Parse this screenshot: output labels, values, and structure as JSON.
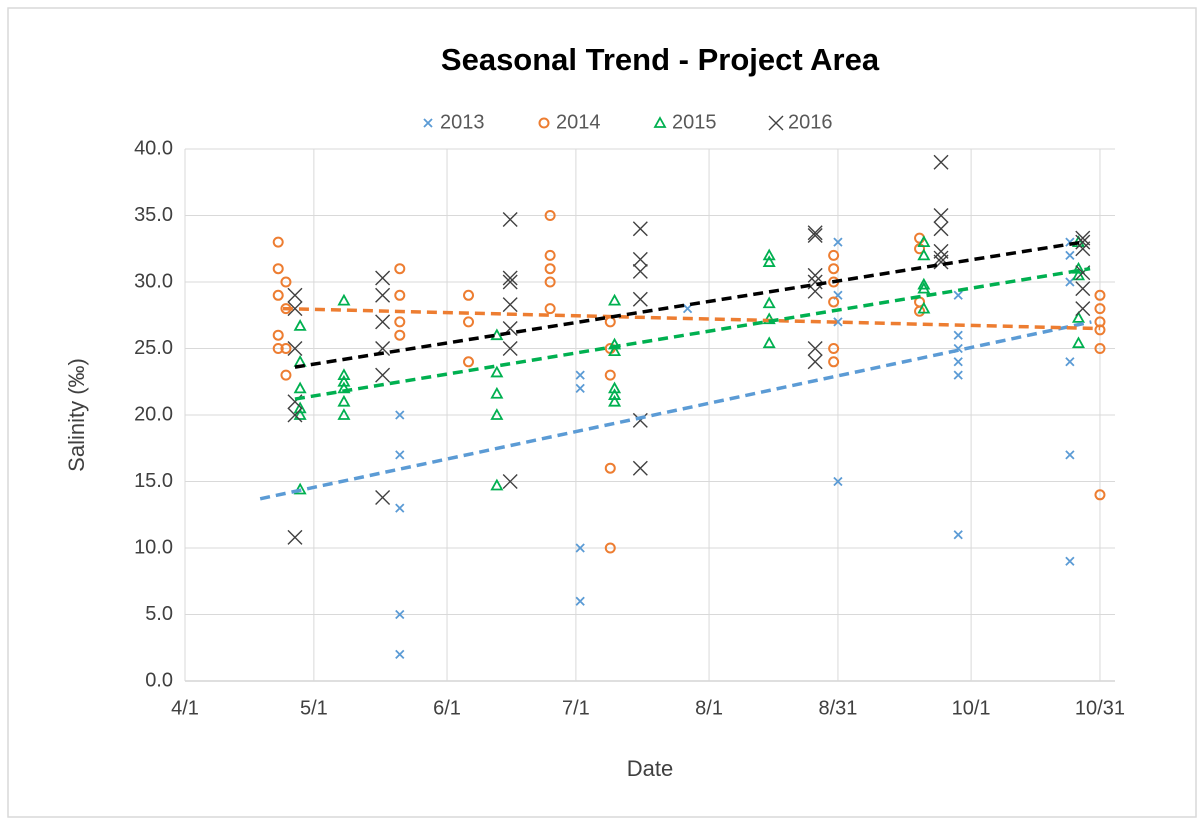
{
  "chart_data": {
    "type": "scatter",
    "title": "Seasonal Trend - Project Area",
    "x_label": "Date",
    "y_label": "Salinity (‰)",
    "xlim": [
      0,
      216.5
    ],
    "xticks": [
      {
        "value": 0,
        "label": "4/1"
      },
      {
        "value": 30,
        "label": "5/1"
      },
      {
        "value": 61,
        "label": "6/1"
      },
      {
        "value": 91,
        "label": "7/1"
      },
      {
        "value": 122,
        "label": "8/1"
      },
      {
        "value": 152,
        "label": "8/31"
      },
      {
        "value": 183,
        "label": "10/1"
      },
      {
        "value": 213,
        "label": "10/31"
      }
    ],
    "ylim": [
      0,
      40
    ],
    "yticks": [
      {
        "value": 0,
        "label": "0.0"
      },
      {
        "value": 5,
        "label": "5.0"
      },
      {
        "value": 10,
        "label": "10.0"
      },
      {
        "value": 15,
        "label": "15.0"
      },
      {
        "value": 20,
        "label": "20.0"
      },
      {
        "value": 25,
        "label": "25.0"
      },
      {
        "value": 30,
        "label": "30.0"
      },
      {
        "value": 35,
        "label": "35.0"
      },
      {
        "value": 40,
        "label": "40.0"
      }
    ],
    "grid": true,
    "legend": "top",
    "series": [
      {
        "name": "2013",
        "color": "#5b9bd5",
        "marker": "x",
        "x": [
          50,
          50,
          50,
          50,
          50,
          92,
          92,
          92,
          92,
          117,
          152,
          152,
          152,
          152,
          180,
          180,
          180,
          180,
          180,
          180,
          206,
          206,
          206,
          206,
          206,
          206
        ],
        "values": [
          20,
          17,
          13,
          5,
          2,
          23,
          22,
          10,
          6,
          28,
          33,
          29,
          27,
          15,
          29,
          26,
          25,
          24,
          23,
          11,
          33,
          32,
          30,
          24,
          17,
          9
        ],
        "trendline": {
          "x": [
            17.5,
            211
          ],
          "values": [
            13.7,
            27
          ]
        }
      },
      {
        "name": "2014",
        "color": "#ed7d31",
        "marker": "circle",
        "x": [
          21.7,
          21.7,
          21.7,
          21.7,
          21.7,
          23.5,
          23.5,
          23.5,
          23.5,
          50,
          50,
          50,
          50,
          66,
          66,
          66,
          85,
          85,
          85,
          85,
          85,
          99,
          99,
          99,
          99,
          99,
          151,
          151,
          151,
          151,
          151,
          151,
          171,
          171,
          171,
          171,
          213,
          213,
          213,
          213,
          213,
          213
        ],
        "values": [
          33,
          31,
          29,
          26,
          25,
          30,
          28,
          25,
          23,
          31,
          29,
          27,
          26,
          29,
          27,
          24,
          35,
          32,
          31,
          30,
          28,
          27,
          25,
          23,
          16,
          10,
          32,
          31,
          30,
          28.5,
          25,
          24,
          33.3,
          32.5,
          28.5,
          27.8,
          29,
          28,
          27,
          26.4,
          25,
          14
        ],
        "trendline": {
          "x": [
            22.8,
            213
          ],
          "values": [
            28,
            26.5
          ]
        }
      },
      {
        "name": "2015",
        "color": "#00b050",
        "marker": "triangle",
        "x": [
          26.8,
          26.8,
          26.8,
          26.8,
          26.8,
          26.8,
          37,
          37,
          37,
          37,
          37,
          37,
          72.6,
          72.6,
          72.6,
          72.6,
          72.6,
          100,
          100,
          100,
          100,
          100,
          100,
          136,
          136,
          136,
          136,
          136,
          172,
          172,
          172,
          172,
          172,
          208,
          208,
          208,
          208,
          208
        ],
        "values": [
          26.7,
          24,
          22,
          20.5,
          20,
          14.4,
          28.6,
          23,
          22.5,
          22,
          21,
          20,
          26,
          23.2,
          21.6,
          20,
          14.7,
          28.6,
          25.3,
          24.8,
          22,
          21.5,
          21,
          32,
          31.5,
          28.4,
          27.2,
          25.4,
          33,
          32,
          29.8,
          29.5,
          28,
          33,
          31,
          30.5,
          27.3,
          25.4
        ],
        "trendline": {
          "x": [
            25.6,
            210.7
          ],
          "values": [
            21.2,
            31
          ]
        }
      },
      {
        "name": "2016",
        "color": "#404040",
        "marker": "cross",
        "x": [
          25.6,
          25.6,
          25.6,
          25.6,
          25.6,
          25.6,
          46,
          46,
          46,
          46,
          46,
          46,
          75.7,
          75.7,
          75.7,
          75.7,
          75.7,
          75.7,
          75.7,
          106,
          106,
          106,
          106,
          106,
          106,
          146.7,
          146.7,
          146.7,
          146.7,
          146.7,
          146.7,
          146.7,
          176,
          176,
          176,
          176,
          176,
          176,
          209,
          209,
          209,
          209,
          209,
          209
        ],
        "values": [
          29,
          28,
          25,
          21,
          20,
          10.8,
          30.3,
          29,
          27,
          25,
          23,
          13.8,
          34.7,
          30.3,
          30,
          28.3,
          26.5,
          25,
          15,
          34,
          31.7,
          30.8,
          28.7,
          19.6,
          16,
          33.7,
          33.5,
          30.5,
          30,
          29.3,
          25,
          24,
          39,
          35,
          34,
          32.3,
          31.8,
          31.5,
          33.3,
          33,
          32.5,
          30.7,
          29.5,
          28
        ],
        "trendline": {
          "x": [
            25.6,
            209
          ],
          "values": [
            23.6,
            33
          ],
          "color": "#000000"
        }
      }
    ]
  }
}
